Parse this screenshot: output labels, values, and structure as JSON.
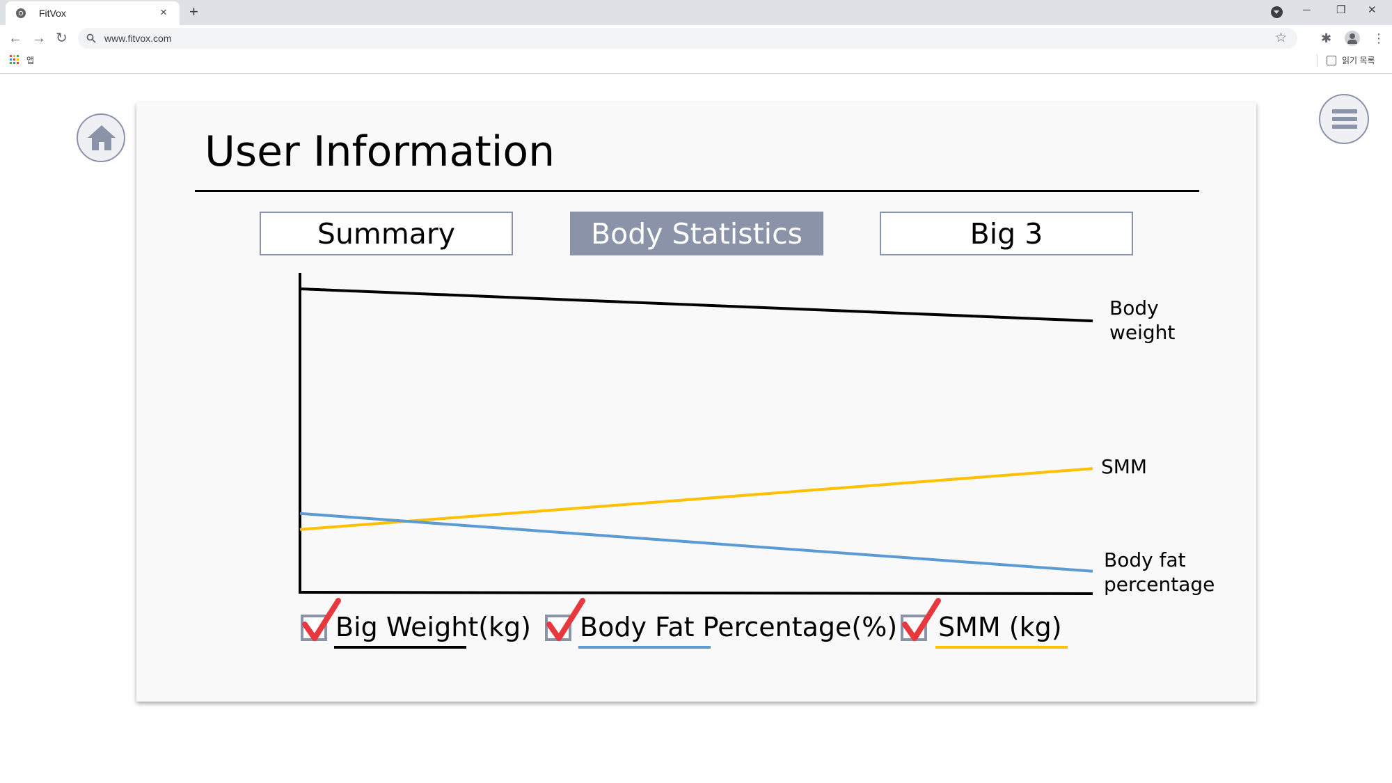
{
  "browser": {
    "tab_title": "FitVox",
    "tab_close": "×",
    "new_tab": "+",
    "url": "www.fitvox.com",
    "bookmarks_apps_label": "앱",
    "reading_list_label": "읽기 목록",
    "icons": [
      "chrome-icon",
      "close-icon",
      "plus-icon",
      "back-icon",
      "forward-icon",
      "reload-icon",
      "search-icon",
      "star-icon",
      "extensions-icon",
      "profile-icon",
      "kebab-menu-icon",
      "apps-icon",
      "reading-list-icon"
    ]
  },
  "page": {
    "title": "User Information",
    "tabs": [
      {
        "label": "Summary",
        "active": false
      },
      {
        "label": "Body Statistics",
        "active": true
      },
      {
        "label": "Big 3",
        "active": false
      }
    ],
    "legend": [
      {
        "label": "Big Weight(kg)",
        "checked": true,
        "color": "#000000"
      },
      {
        "label": "Body Fat Percentage(%)",
        "checked": true,
        "color": "#5b9bd5"
      },
      {
        "label": "SMM (kg)",
        "checked": true,
        "color": "#ffc000"
      }
    ],
    "colors": {
      "accent": "#8a93a8",
      "check": "#e8383d",
      "body_weight": "#000000",
      "smm": "#ffc000",
      "body_fat": "#5b9bd5"
    }
  },
  "chart_data": {
    "type": "line",
    "title": "",
    "xlabel": "",
    "ylabel": "",
    "x": [
      0,
      1
    ],
    "ylim": [
      0,
      100
    ],
    "series": [
      {
        "name": "Body weight",
        "values": [
          95,
          85
        ],
        "color": "#000000"
      },
      {
        "name": "SMM",
        "values": [
          20,
          39
        ],
        "color": "#ffc000"
      },
      {
        "name": "Body fat percentage",
        "values": [
          25,
          7
        ],
        "color": "#5b9bd5"
      }
    ],
    "grid": false,
    "legend": "right"
  }
}
